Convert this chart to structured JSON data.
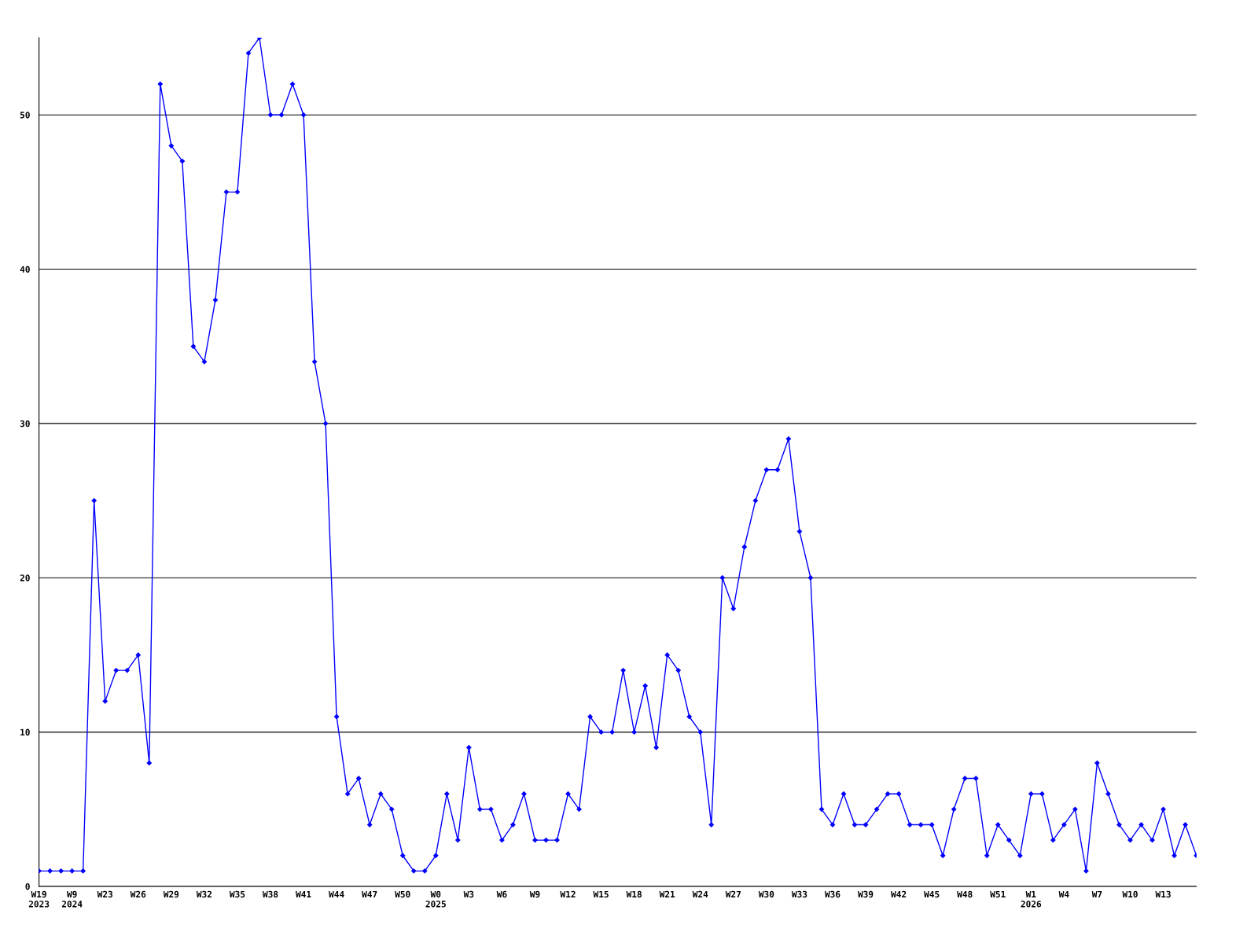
{
  "chart_data": {
    "type": "line",
    "categories": [
      "W19\n2023",
      null,
      null,
      "W9\n2024",
      null,
      null,
      "W23",
      null,
      null,
      "W26",
      null,
      null,
      "W29",
      null,
      null,
      "W32",
      null,
      null,
      "W35",
      null,
      null,
      "W38",
      null,
      null,
      "W41",
      null,
      null,
      "W44",
      null,
      null,
      "W47",
      null,
      null,
      "W50",
      null,
      null,
      "W0\n2025",
      null,
      null,
      "W3",
      null,
      null,
      "W6",
      null,
      null,
      "W9",
      null,
      null,
      "W12",
      null,
      null,
      "W15",
      null,
      null,
      "W18",
      null,
      null,
      "W21",
      null,
      null,
      "W24",
      null,
      null,
      "W27",
      null,
      null,
      "W30",
      null,
      null,
      "W33",
      null,
      null,
      "W36",
      null,
      null,
      "W39",
      null,
      null,
      "W42",
      null,
      null,
      "W45",
      null,
      null,
      "W48",
      null,
      null,
      "W51",
      null,
      null,
      "W1\n2026",
      null,
      null,
      "W4",
      null,
      null,
      "W7",
      null,
      null,
      "W10",
      null,
      null,
      "W13",
      null,
      null,
      null
    ],
    "series": [
      {
        "color": "#0000ff",
        "values": [
          1,
          1,
          1,
          1,
          1,
          25,
          12,
          14,
          14,
          15,
          8,
          52,
          48,
          47,
          35,
          34,
          38,
          45,
          45,
          54,
          55,
          50,
          50,
          52,
          50,
          34,
          30,
          11,
          6,
          7,
          4,
          6,
          5,
          2,
          1,
          1,
          2,
          6,
          3,
          9,
          5,
          5,
          3,
          4,
          6,
          3,
          3,
          3,
          6,
          5,
          11,
          10,
          10,
          14,
          10,
          13,
          9,
          15,
          14,
          11,
          10,
          4,
          20,
          18,
          22,
          25,
          27,
          27,
          29,
          23,
          20,
          5,
          4,
          6,
          4,
          4,
          5,
          6,
          6,
          4,
          4,
          4,
          2,
          5,
          7,
          7,
          2,
          4,
          3,
          2,
          6,
          6,
          3,
          4,
          5,
          1,
          8,
          6,
          4,
          3,
          4,
          3,
          5,
          2,
          4,
          2
        ]
      }
    ],
    "ylim": [
      0,
      55
    ],
    "yticks": [
      0,
      10,
      20,
      30,
      40,
      50
    ],
    "grid": "y",
    "marker": "diamond",
    "line_style": "solid",
    "legend": false
  }
}
